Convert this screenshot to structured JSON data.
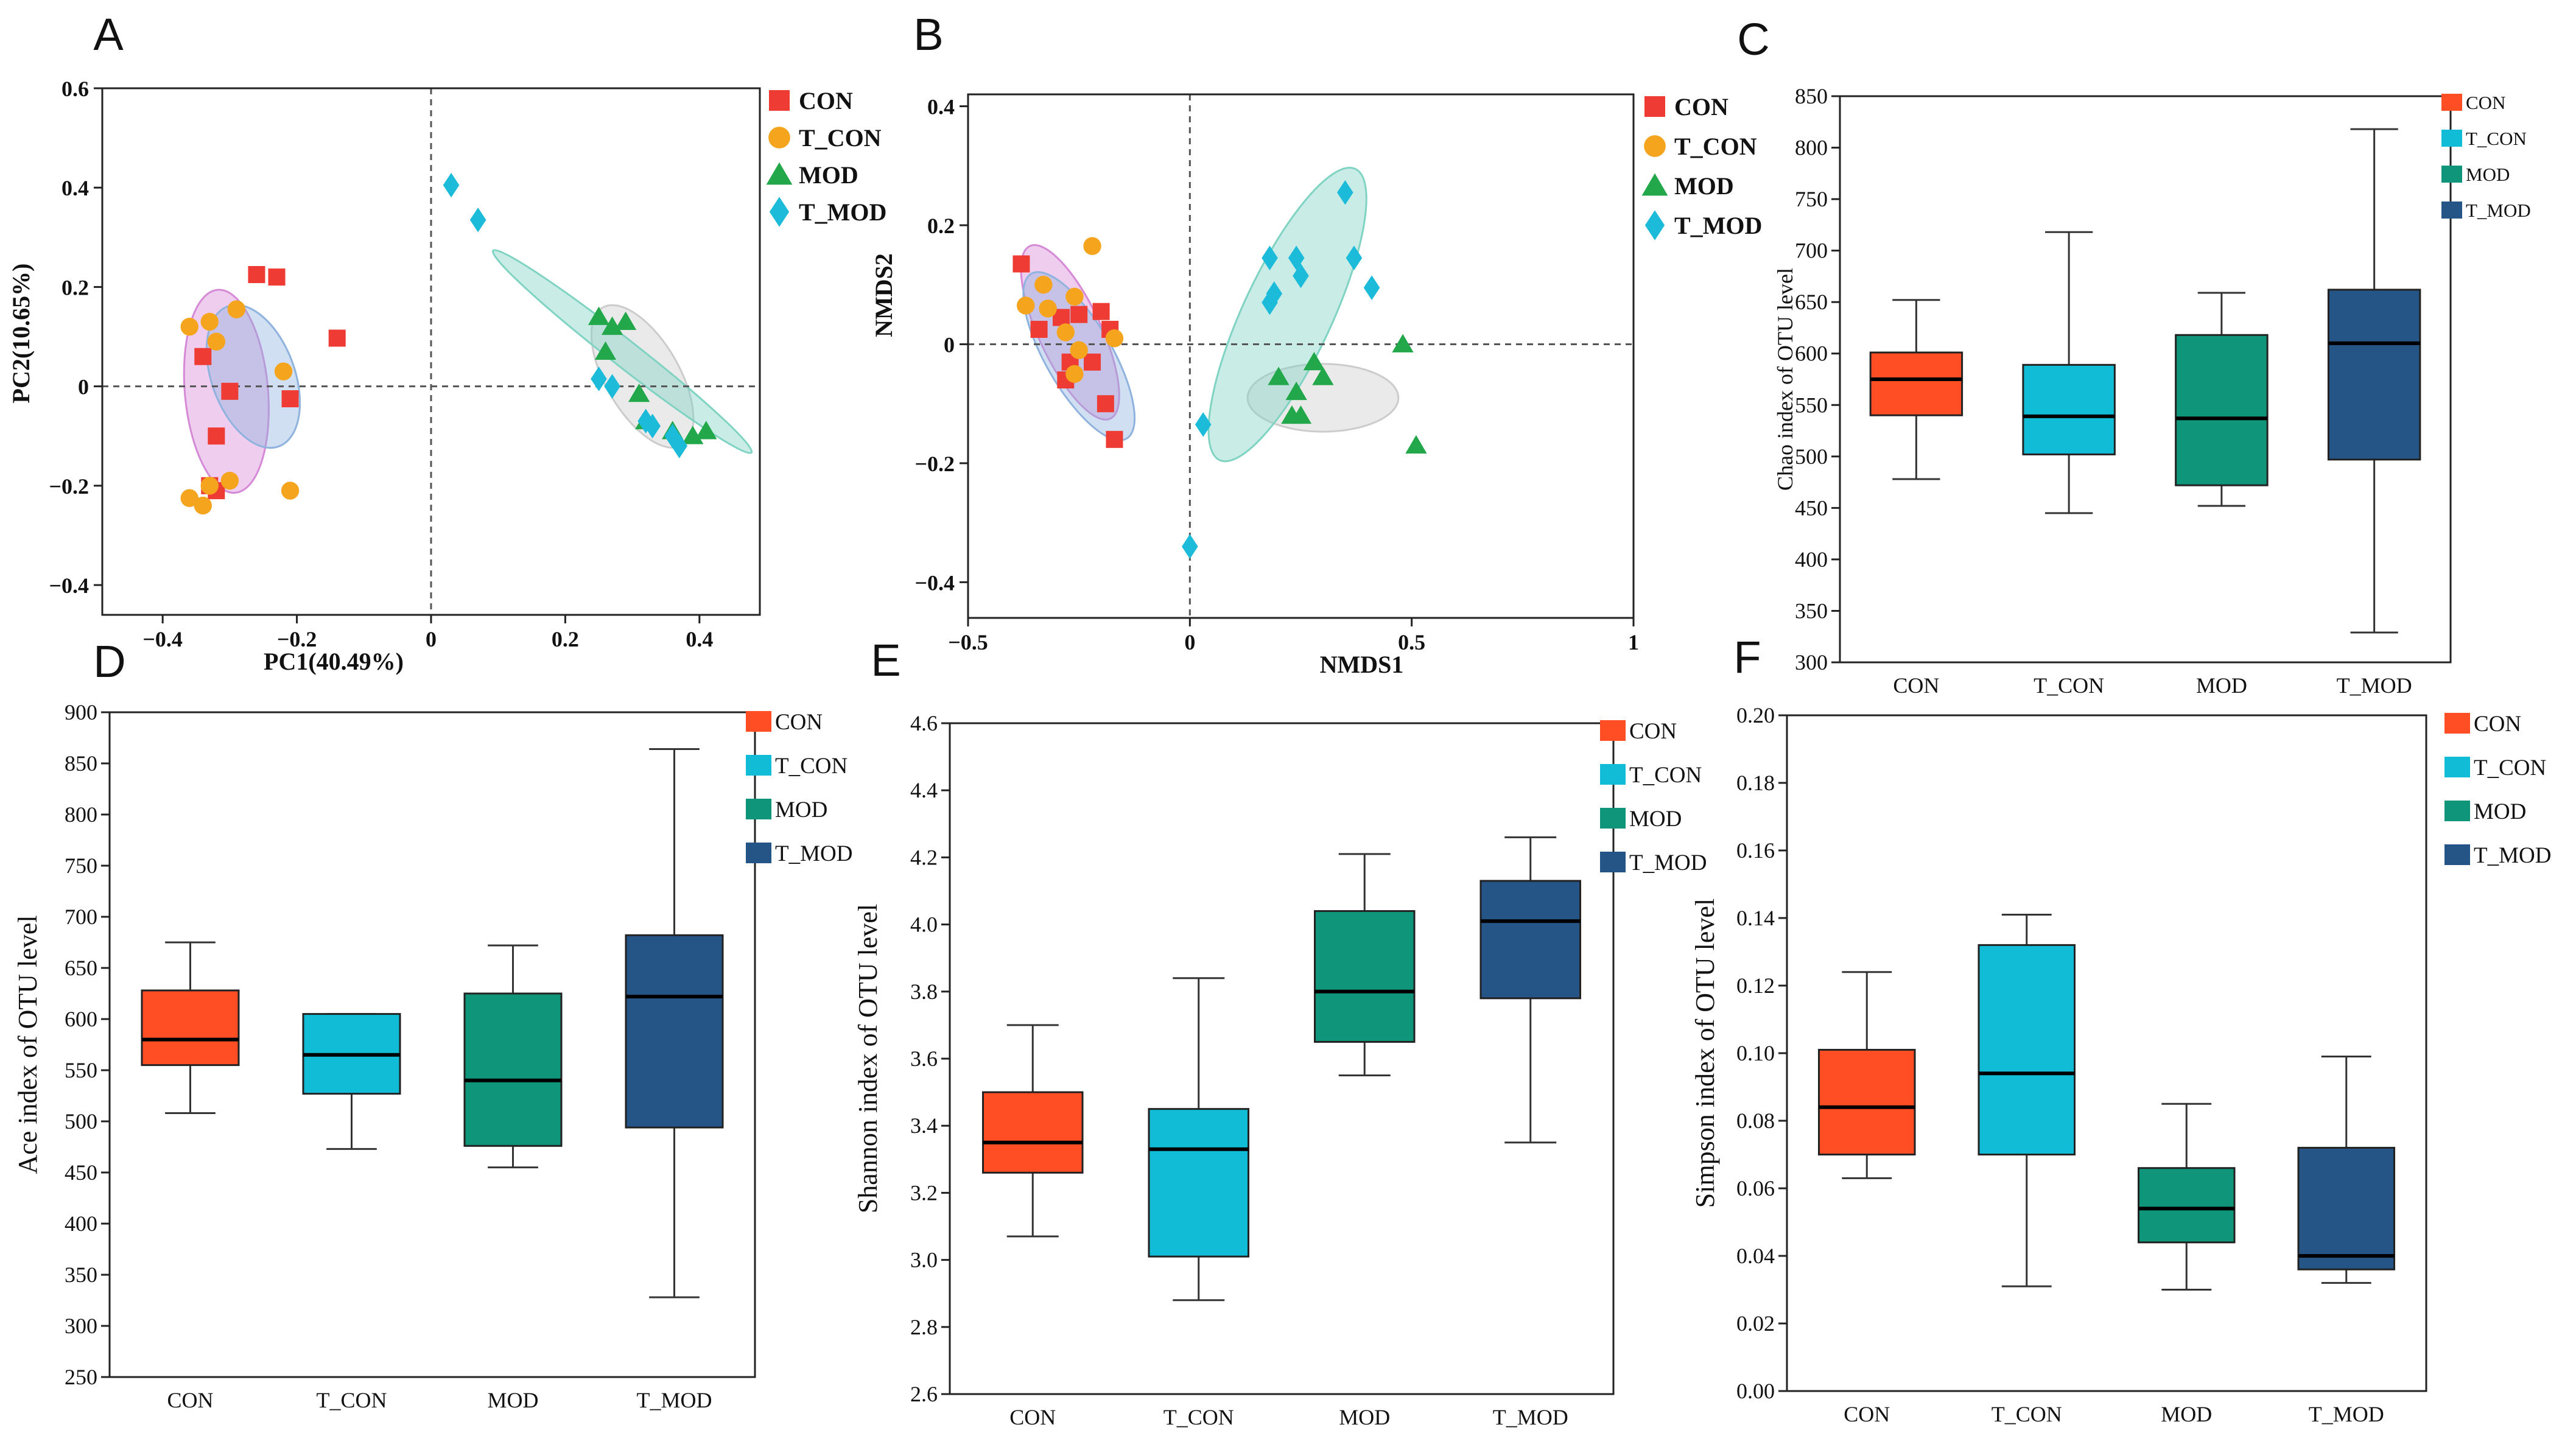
{
  "colors": {
    "CON": "#ee3b34",
    "T_CON": "#f5a41e",
    "MOD": "#22a84a",
    "T_MOD": "#1bbbd9",
    "box_CON": "#ff4e24",
    "box_T_CON": "#11bcd6",
    "box_MOD": "#0f9579",
    "box_T_MOD": "#255487",
    "ellipse_CON": "#d689d6",
    "ellipse_T_CON": "#8fb3de",
    "ellipse_MOD": "#cccccc",
    "ellipse_T_MOD": "#7fd3c3"
  },
  "chart_data": [
    {
      "panel": "A",
      "type": "scatter",
      "xlabel": "PC1(40.49%)",
      "ylabel": "PC2(10.65%)",
      "xlim": [
        -0.49,
        0.49
      ],
      "ylim": [
        -0.46,
        0.6
      ],
      "xticks": [
        "−0.4",
        "−0.2",
        "0",
        "0.2",
        "0.4"
      ],
      "xtick_values": [
        -0.4,
        -0.2,
        0,
        0.2,
        0.4
      ],
      "yticks": [
        "−0.4",
        "−0.2",
        "0",
        "0.2",
        "0.4",
        "0.6"
      ],
      "ytick_values": [
        -0.4,
        -0.2,
        0,
        0.2,
        0.4,
        0.6
      ],
      "legend": [
        "CON",
        "T_CON",
        "MOD",
        "T_MOD"
      ],
      "series": [
        {
          "name": "CON",
          "marker": "square",
          "x": [
            -0.26,
            -0.23,
            -0.14,
            -0.34,
            -0.32,
            -0.3,
            -0.21,
            -0.32,
            -0.33
          ],
          "y": [
            0.225,
            0.22,
            0.097,
            0.06,
            -0.1,
            -0.01,
            -0.025,
            -0.21,
            -0.2
          ]
        },
        {
          "name": "T_CON",
          "marker": "circle",
          "x": [
            -0.36,
            -0.33,
            -0.32,
            -0.29,
            -0.22,
            -0.21,
            -0.3,
            -0.33,
            -0.34,
            -0.36
          ],
          "y": [
            0.12,
            0.13,
            0.09,
            0.155,
            0.03,
            -0.21,
            -0.19,
            -0.2,
            -0.24,
            -0.225
          ]
        },
        {
          "name": "MOD",
          "marker": "triangle",
          "x": [
            0.25,
            0.27,
            0.29,
            0.26,
            0.31,
            0.32,
            0.36,
            0.39,
            0.41
          ],
          "y": [
            0.14,
            0.12,
            0.13,
            0.07,
            -0.015,
            -0.07,
            -0.09,
            -0.1,
            -0.09
          ]
        },
        {
          "name": "T_MOD",
          "marker": "diamond",
          "x": [
            0.03,
            0.07,
            0.25,
            0.27,
            0.32,
            0.33,
            0.36,
            0.37
          ],
          "y": [
            0.405,
            0.335,
            0.015,
            0.0,
            -0.07,
            -0.08,
            -0.1,
            -0.12
          ]
        }
      ],
      "ellipses": [
        {
          "group": "CON",
          "cx": -0.305,
          "cy": -0.01,
          "rx": 0.062,
          "ry": 0.205,
          "angle": -5
        },
        {
          "group": "T_CON",
          "cx": -0.265,
          "cy": 0.02,
          "rx": 0.062,
          "ry": 0.15,
          "angle": -20
        },
        {
          "group": "MOD",
          "cx": 0.315,
          "cy": 0.02,
          "rx": 0.055,
          "ry": 0.16,
          "angle": -30
        },
        {
          "group": "T_MOD",
          "cx": 0.285,
          "cy": 0.07,
          "rx": 0.02,
          "ry": 0.33,
          "angle": -52
        }
      ]
    },
    {
      "panel": "B",
      "type": "scatter",
      "xlabel": "NMDS1",
      "ylabel": "NMDS2",
      "xlim": [
        -0.5,
        1.0
      ],
      "ylim": [
        -0.46,
        0.42
      ],
      "xticks": [
        "−0.5",
        "0",
        "0.5",
        "1"
      ],
      "xtick_values": [
        -0.5,
        0,
        0.5,
        1.0
      ],
      "yticks": [
        "−0.4",
        "−0.2",
        "0",
        "0.2",
        "0.4"
      ],
      "ytick_values": [
        -0.4,
        -0.2,
        0,
        0.2,
        0.4
      ],
      "legend": [
        "CON",
        "T_CON",
        "MOD",
        "T_MOD"
      ],
      "series": [
        {
          "name": "CON",
          "marker": "square",
          "x": [
            -0.38,
            -0.34,
            -0.29,
            -0.25,
            -0.2,
            -0.18,
            -0.22,
            -0.27,
            -0.28,
            -0.19,
            -0.17
          ],
          "y": [
            0.135,
            0.025,
            0.045,
            0.05,
            0.055,
            0.025,
            -0.03,
            -0.03,
            -0.06,
            -0.1,
            -0.16
          ]
        },
        {
          "name": "T_CON",
          "marker": "circle",
          "x": [
            -0.22,
            -0.33,
            -0.37,
            -0.32,
            -0.28,
            -0.26,
            -0.17,
            -0.25,
            -0.26
          ],
          "y": [
            0.165,
            0.1,
            0.065,
            0.06,
            0.02,
            0.08,
            0.01,
            -0.01,
            -0.05
          ]
        },
        {
          "name": "MOD",
          "marker": "triangle",
          "x": [
            0.2,
            0.28,
            0.3,
            0.24,
            0.23,
            0.25,
            0.48,
            0.51
          ],
          "y": [
            -0.055,
            -0.03,
            -0.055,
            -0.08,
            -0.12,
            -0.12,
            -0.0,
            -0.17
          ]
        },
        {
          "name": "T_MOD",
          "marker": "diamond",
          "x": [
            0.35,
            0.18,
            0.24,
            0.18,
            0.37,
            0.41,
            0.19,
            0.25,
            0.03,
            0.0
          ],
          "y": [
            0.255,
            0.145,
            0.145,
            0.07,
            0.145,
            0.095,
            0.085,
            0.115,
            -0.135,
            -0.34
          ]
        }
      ],
      "ellipses": [
        {
          "group": "CON",
          "cx": -0.27,
          "cy": 0.02,
          "rx": 0.07,
          "ry": 0.16,
          "angle": -25
        },
        {
          "group": "T_CON",
          "cx": -0.25,
          "cy": -0.02,
          "rx": 0.075,
          "ry": 0.16,
          "angle": -30
        },
        {
          "group": "MOD",
          "cx": 0.3,
          "cy": -0.09,
          "rx": 0.17,
          "ry": 0.057,
          "angle": 0
        },
        {
          "group": "T_MOD",
          "cx": 0.22,
          "cy": 0.05,
          "rx": 0.1,
          "ry": 0.27,
          "angle": 25
        }
      ]
    },
    {
      "panel": "C",
      "type": "box",
      "ylabel": "Chao index of OTU level",
      "ylim": [
        300,
        850
      ],
      "yticks": [
        300,
        350,
        400,
        450,
        500,
        550,
        600,
        650,
        700,
        750,
        800,
        850
      ],
      "categories": [
        "CON",
        "T_CON",
        "MOD",
        "T_MOD"
      ],
      "boxes": [
        {
          "min": 478,
          "q1": 540,
          "median": 575,
          "q3": 601,
          "max": 652
        },
        {
          "min": 445,
          "q1": 502,
          "median": 539,
          "q3": 589,
          "max": 718
        },
        {
          "min": 452,
          "q1": 472,
          "median": 537,
          "q3": 618,
          "max": 659
        },
        {
          "min": 329,
          "q1": 497,
          "median": 610,
          "q3": 662,
          "max": 818
        }
      ]
    },
    {
      "panel": "D",
      "type": "box",
      "ylabel": "Ace index of OTU level",
      "ylim": [
        250,
        900
      ],
      "yticks": [
        250,
        300,
        350,
        400,
        450,
        500,
        550,
        600,
        650,
        700,
        750,
        800,
        850,
        900
      ],
      "categories": [
        "CON",
        "T_CON",
        "MOD",
        "T_MOD"
      ],
      "boxes": [
        {
          "min": 508,
          "q1": 555,
          "median": 580,
          "q3": 628,
          "max": 675
        },
        {
          "min": 473,
          "q1": 527,
          "median": 565,
          "q3": 605,
          "max": 605
        },
        {
          "min": 455,
          "q1": 476,
          "median": 540,
          "q3": 625,
          "max": 672
        },
        {
          "min": 328,
          "q1": 494,
          "median": 622,
          "q3": 682,
          "max": 864
        }
      ]
    },
    {
      "panel": "E",
      "type": "box",
      "ylabel": "Shannon index of OTU level",
      "ylim": [
        2.6,
        4.6
      ],
      "yticks": [
        "2.6",
        "2.8",
        "3.0",
        "3.2",
        "3.4",
        "3.6",
        "3.8",
        "4.0",
        "4.2",
        "4.4",
        "4.6"
      ],
      "categories": [
        "CON",
        "T_CON",
        "MOD",
        "T_MOD"
      ],
      "boxes": [
        {
          "min": 3.07,
          "q1": 3.26,
          "median": 3.35,
          "q3": 3.5,
          "max": 3.7
        },
        {
          "min": 2.88,
          "q1": 3.01,
          "median": 3.33,
          "q3": 3.45,
          "max": 3.84
        },
        {
          "min": 3.55,
          "q1": 3.65,
          "median": 3.8,
          "q3": 4.04,
          "max": 4.21
        },
        {
          "min": 3.35,
          "q1": 3.78,
          "median": 4.01,
          "q3": 4.13,
          "max": 4.26
        }
      ]
    },
    {
      "panel": "F",
      "type": "box",
      "ylabel": "Simpson index of OTU level",
      "ylim": [
        0.0,
        0.2
      ],
      "yticks": [
        "0.00",
        "0.02",
        "0.04",
        "0.06",
        "0.08",
        "0.10",
        "0.12",
        "0.14",
        "0.16",
        "0.18",
        "0.20"
      ],
      "categories": [
        "CON",
        "T_CON",
        "MOD",
        "T_MOD"
      ],
      "boxes": [
        {
          "min": 0.063,
          "q1": 0.07,
          "median": 0.084,
          "q3": 0.101,
          "max": 0.124
        },
        {
          "min": 0.031,
          "q1": 0.07,
          "median": 0.094,
          "q3": 0.132,
          "max": 0.141
        },
        {
          "min": 0.03,
          "q1": 0.044,
          "median": 0.054,
          "q3": 0.066,
          "max": 0.085
        },
        {
          "min": 0.032,
          "q1": 0.036,
          "median": 0.04,
          "q3": 0.072,
          "max": 0.099
        }
      ]
    }
  ]
}
